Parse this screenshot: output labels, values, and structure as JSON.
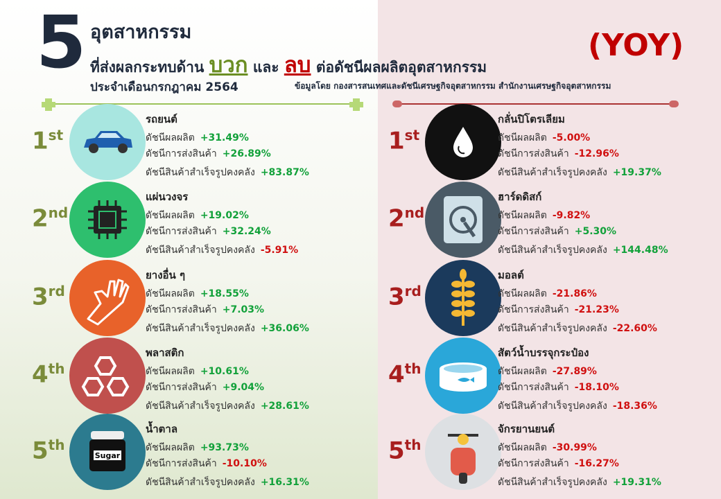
{
  "header": {
    "big_number": "5",
    "line1": "อุตสาหกรรม",
    "line2_prefix": "ที่ส่งผลกระทบด้าน",
    "positive_word": "บวก",
    "and_word": "และ",
    "negative_word": "ลบ",
    "line2_suffix": "ต่อดัชนีผลผลิตอุตสาหกรรม",
    "line3": "ประจำเดือนกรกฎาคม 2564",
    "source": "ข้อมูลโดย กองสารสนเทศและดัชนีเศรษฐกิจอุตสาหกรรม สำนักงานเศรษฐกิจอุตสาหกรรม",
    "yoy": "(YOY)"
  },
  "metric_labels": [
    "ดัชนีผลผลิต",
    "ดัชนีการส่งสินค้า",
    "ดัชนีสินค้าสำเร็จรูปคงคลัง"
  ],
  "positive": {
    "items": [
      {
        "rank": "1",
        "suffix": "st",
        "name": "รถยนต์",
        "values": [
          "+31.49%",
          "+26.89%",
          "+83.87%"
        ]
      },
      {
        "rank": "2",
        "suffix": "nd",
        "name": "แผ่นวงจร",
        "values": [
          "+19.02%",
          "+32.24%",
          "-5.91%"
        ]
      },
      {
        "rank": "3",
        "suffix": "rd",
        "name": "ยางอื่น ๆ",
        "values": [
          "+18.55%",
          "+7.03%",
          "+36.06%"
        ]
      },
      {
        "rank": "4",
        "suffix": "th",
        "name": "พลาสติก",
        "values": [
          "+10.61%",
          "+9.04%",
          "+28.61%"
        ]
      },
      {
        "rank": "5",
        "suffix": "th",
        "name": "น้ำตาล",
        "values": [
          "+93.73%",
          "-10.10%",
          "+16.31%"
        ],
        "icon_text": "Sugar"
      }
    ]
  },
  "negative": {
    "items": [
      {
        "rank": "1",
        "suffix": "st",
        "name": "กลั่นปิโตรเลียม",
        "values": [
          "-5.00%",
          "-12.96%",
          "+19.37%"
        ]
      },
      {
        "rank": "2",
        "suffix": "nd",
        "name": "ฮาร์ดดิสก์",
        "values": [
          "-9.82%",
          "+5.30%",
          "+144.48%"
        ]
      },
      {
        "rank": "3",
        "suffix": "rd",
        "name": "มอลต์",
        "values": [
          "-21.86%",
          "-21.23%",
          "-22.60%"
        ]
      },
      {
        "rank": "4",
        "suffix": "th",
        "name": "สัตว์น้ำบรรจุกระป๋อง",
        "values": [
          "-27.89%",
          "-18.10%",
          "-18.36%"
        ]
      },
      {
        "rank": "5",
        "suffix": "th",
        "name": "จักรยานยนต์",
        "values": [
          "-30.99%",
          "-16.27%",
          "+19.31%"
        ]
      }
    ]
  }
}
